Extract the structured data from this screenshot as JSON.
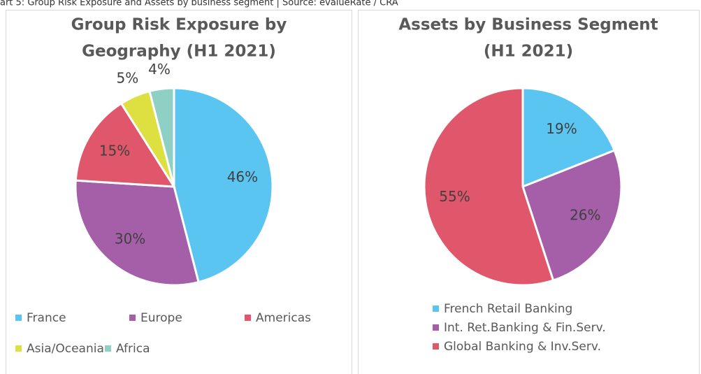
{
  "caption": "art 5: Group Risk Exposure and Assets by business segment | Source: evalueRate / CRA",
  "chart_data": [
    {
      "type": "pie",
      "title": [
        "Group Risk Exposure by",
        "Geography (H1 2021)"
      ],
      "categories": [
        "France",
        "Europe",
        "Americas",
        "Asia/Oceania",
        "Africa"
      ],
      "values": [
        46,
        30,
        15,
        5,
        4
      ],
      "value_labels": [
        "46%",
        "30%",
        "15%",
        "5%",
        "4%"
      ],
      "colors": [
        "#5bc5f2",
        "#a55fa8",
        "#e0566a",
        "#dde040",
        "#8fd0c4"
      ],
      "legend": "bottom"
    },
    {
      "type": "pie",
      "title": [
        "Assets by Business Segment",
        "(H1 2021)"
      ],
      "categories": [
        "French Retail Banking",
        "Int. Ret.Banking & Fin.Serv.",
        "Global Banking & Inv.Serv."
      ],
      "values": [
        19,
        26,
        55
      ],
      "value_labels": [
        "19%",
        "26%",
        "55%"
      ],
      "colors": [
        "#5bc5f2",
        "#a55fa8",
        "#e0566a"
      ],
      "legend": "bottom"
    }
  ]
}
